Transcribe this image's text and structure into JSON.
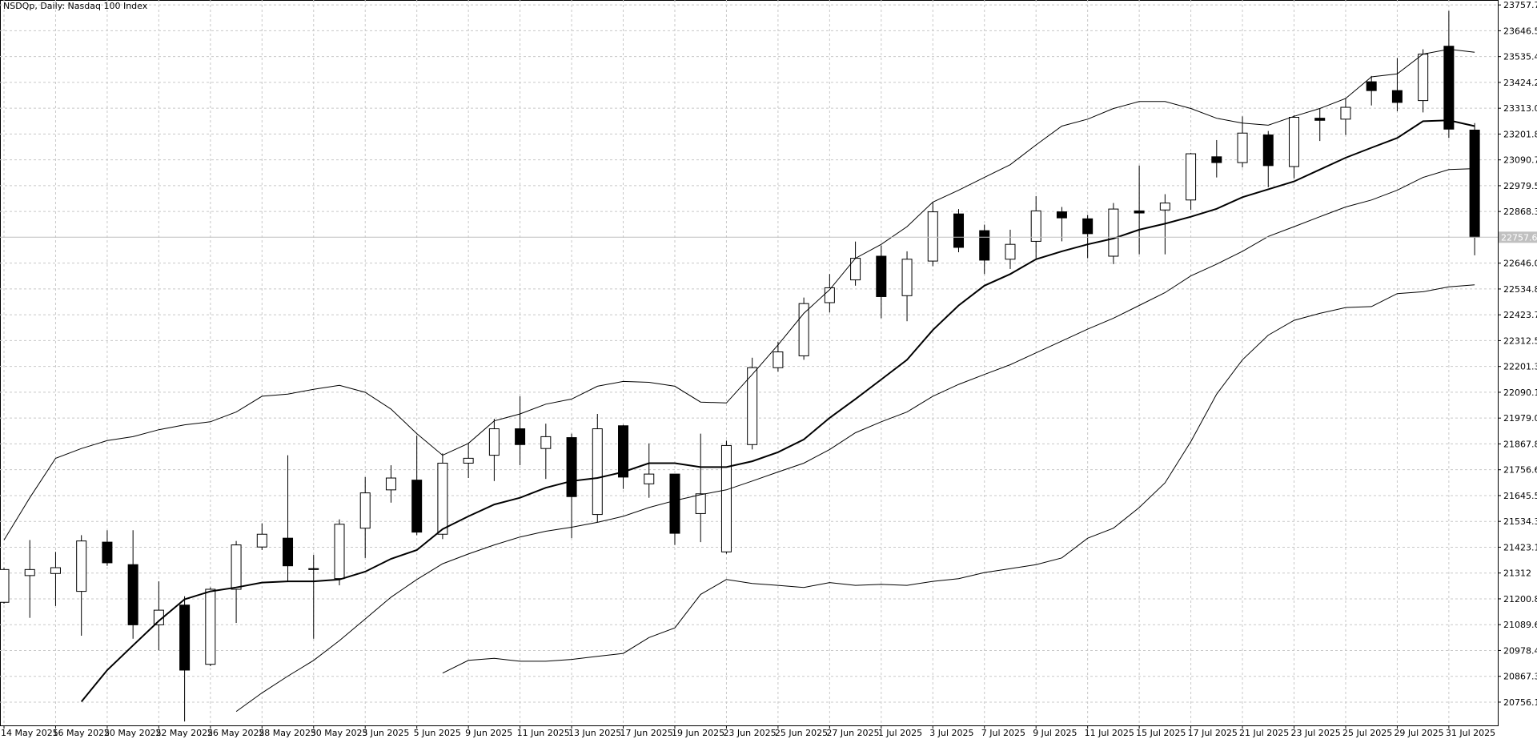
{
  "chart_data": {
    "type": "candlestick",
    "title": "NSDQp, Daily:  Nasdaq 100 Index",
    "categories": [
      "14 May 2025",
      null,
      "16 May 2025",
      null,
      "20 May 2025",
      null,
      "22 May 2025",
      null,
      "26 May 2025",
      null,
      "28 May 2025",
      null,
      "30 May 2025",
      null,
      "3 Jun 2025",
      null,
      "5 Jun 2025",
      null,
      "9 Jun 2025",
      null,
      "11 Jun 2025",
      null,
      "13 Jun 2025",
      null,
      "17 Jun 2025",
      null,
      "19 Jun 2025",
      null,
      "23 Jun 2025",
      null,
      "25 Jun 2025",
      null,
      "27 Jun 2025",
      null,
      "1 Jul 2025",
      null,
      "3 Jul 2025",
      null,
      "7 Jul 2025",
      null,
      "9 Jul 2025",
      null,
      "11 Jul 2025",
      null,
      "15 Jul 2025",
      null,
      "17 Jul 2025",
      null,
      "21 Jul 2025",
      null,
      "23 Jul 2025",
      null,
      "25 Jul 2025",
      null,
      "29 Jul 2025",
      null,
      "31 Jul 2025",
      null
    ],
    "open": [
      21186,
      21301,
      21310,
      21233,
      21445,
      21348,
      21089,
      21174,
      20919,
      21242,
      21424,
      21462,
      21331,
      21288,
      21505,
      21670,
      21712,
      21479,
      21785,
      21819,
      21933,
      21848,
      21895,
      21564,
      21946,
      21696,
      21738,
      21568,
      21403,
      21865,
      22196,
      22247,
      22476,
      22574,
      22676,
      22506,
      22655,
      22858,
      22786,
      22663,
      22740,
      22867,
      22837,
      22676,
      22871,
      22875,
      22918,
      23104,
      23079,
      23198,
      23062,
      23270,
      23266,
      23427,
      23389,
      23346,
      23580,
      23219
    ],
    "high": [
      21335,
      21454,
      21403,
      21475,
      21496,
      21496,
      21276,
      21212,
      21250,
      21450,
      21526,
      21819,
      21390,
      21543,
      21725,
      21776,
      21904,
      21827,
      21870,
      21976,
      22073,
      21955,
      21912,
      21997,
      21950,
      21870,
      21738,
      21912,
      21882,
      22239,
      22307,
      22498,
      22599,
      22739,
      22722,
      22697,
      22909,
      22879,
      22812,
      22790,
      22935,
      22888,
      22854,
      22905,
      23066,
      22943,
      23121,
      23176,
      23278,
      23215,
      23283,
      23312,
      23355,
      23452,
      23529,
      23567,
      23732,
      23249
    ],
    "low": [
      21180,
      21119,
      21170,
      21042,
      21343,
      21029,
      20979,
      20673,
      20911,
      21097,
      21411,
      21276,
      21029,
      21259,
      21377,
      21615,
      21475,
      21458,
      21721,
      21708,
      21776,
      21717,
      21462,
      21530,
      21674,
      21636,
      21433,
      21445,
      21395,
      21844,
      22179,
      22230,
      22434,
      22549,
      22409,
      22396,
      22633,
      22693,
      22599,
      22621,
      22667,
      22740,
      22667,
      22642,
      22684,
      22684,
      22875,
      23015,
      23058,
      22973,
      23011,
      23172,
      23198,
      23325,
      23300,
      23295,
      23185,
      22680
    ],
    "close": [
      21327,
      21327,
      21335,
      21450,
      21356,
      21089,
      21152,
      20894,
      21242,
      21433,
      21479,
      21343,
      21327,
      21522,
      21657,
      21721,
      21488,
      21785,
      21806,
      21933,
      21865,
      21899,
      21641,
      21933,
      21725,
      21738,
      21483,
      21653,
      21861,
      22196,
      22264,
      22472,
      22540,
      22667,
      22502,
      22663,
      22867,
      22714,
      22659,
      22727,
      22871,
      22841,
      22773,
      22879,
      22862,
      22905,
      23117,
      23079,
      23206,
      23066,
      23274,
      23261,
      23317,
      23389,
      23338,
      23546,
      23223,
      22757.62
    ],
    "up_color": "#ffffff",
    "down_color": "#000000",
    "overlays": [
      {
        "color": "#000000",
        "width": 1,
        "values": [
          21454,
          21636,
          21806,
          21848,
          21882,
          21899,
          21929,
          21950,
          21963,
          22005,
          22073,
          22082,
          22103,
          22120,
          22090,
          22018,
          21912,
          21819,
          21870,
          21967,
          21997,
          22039,
          22061,
          22116,
          22137,
          22133,
          22116,
          22048,
          22044,
          22167,
          22294,
          22430,
          22532,
          22667,
          22727,
          22803,
          22909,
          22960,
          23015,
          23070,
          23155,
          23236,
          23266,
          23312,
          23342,
          23342,
          23312,
          23270,
          23249,
          23240,
          23278,
          23312,
          23355,
          23448,
          23461,
          23546,
          23567,
          23554
        ]
      },
      {
        "color": "#000000",
        "width": 1,
        "values": [
          null,
          null,
          null,
          null,
          null,
          null,
          null,
          null,
          null,
          20716,
          20796,
          20868,
          20936,
          21021,
          21114,
          21208,
          21284,
          21352,
          21394,
          21433,
          21467,
          21492,
          21509,
          21530,
          21556,
          21594,
          21624,
          21649,
          21670,
          21708,
          21747,
          21785,
          21844,
          21916,
          21963,
          22005,
          22073,
          22124,
          22167,
          22209,
          22260,
          22311,
          22362,
          22409,
          22464,
          22519,
          22591,
          22642,
          22697,
          22761,
          22803,
          22846,
          22888,
          22918,
          22960,
          23015,
          23049,
          23053
        ]
      },
      {
        "color": "#000000",
        "width": 1,
        "values": [
          null,
          null,
          null,
          null,
          null,
          null,
          null,
          null,
          null,
          null,
          null,
          null,
          null,
          null,
          null,
          null,
          null,
          20881,
          20936,
          20945,
          20932,
          20932,
          20940,
          20953,
          20966,
          21034,
          21076,
          21220,
          21284,
          21267,
          21259,
          21250,
          21271,
          21259,
          21263,
          21259,
          21276,
          21288,
          21314,
          21331,
          21348,
          21377,
          21462,
          21505,
          21594,
          21700,
          21878,
          22082,
          22230,
          22336,
          22400,
          22430,
          22455,
          22459,
          22515,
          22523,
          22544,
          22553
        ]
      },
      {
        "color": "#000000",
        "width": 2,
        "values": [
          null,
          null,
          null,
          20758,
          20894,
          21000,
          21106,
          21199,
          21233,
          21250,
          21271,
          21276,
          21276,
          21284,
          21318,
          21373,
          21411,
          21501,
          21556,
          21607,
          21636,
          21679,
          21708,
          21721,
          21747,
          21785,
          21785,
          21768,
          21768,
          21793,
          21832,
          21887,
          21980,
          22061,
          22145,
          22230,
          22358,
          22464,
          22549,
          22599,
          22663,
          22697,
          22727,
          22752,
          22790,
          22816,
          22846,
          22880,
          22930,
          22964,
          22998,
          23049,
          23100,
          23143,
          23185,
          23257,
          23261,
          23236
        ]
      }
    ],
    "current_price": 22757.62,
    "ylim": [
      20656,
      23779
    ],
    "yticks": [
      23757.74,
      23646.57,
      23535.4,
      23424.23,
      23313.06,
      23201.89,
      23090.72,
      22979.55,
      22868.38,
      22646.04,
      22534.87,
      22423.7,
      22312.53,
      22201.36,
      22090.19,
      21979.02,
      21867.85,
      21756.68,
      21645.51,
      21534.34,
      21423.17,
      21312.0,
      21200.83,
      21089.66,
      20978.49,
      20867.32,
      20756.15
    ],
    "grid": true
  }
}
